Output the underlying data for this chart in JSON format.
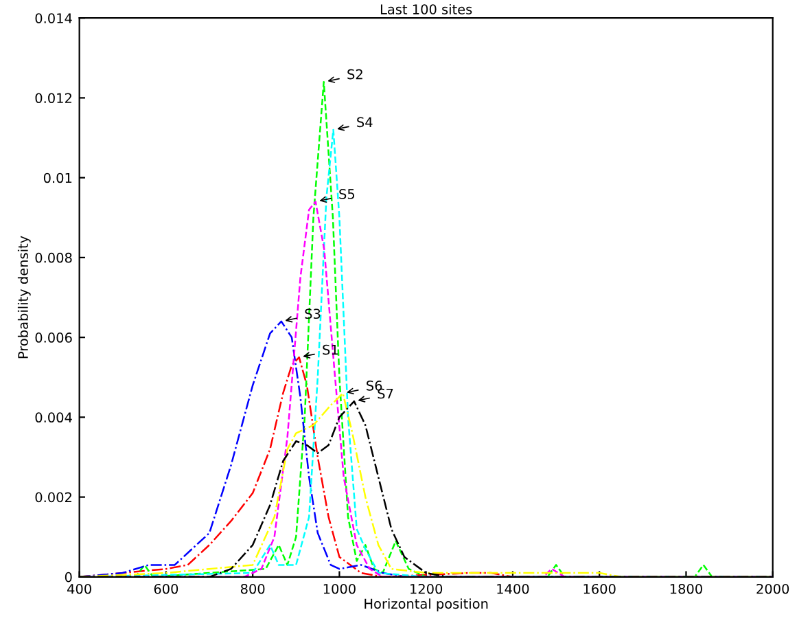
{
  "chart_data": {
    "type": "line",
    "title": "Last 100 sites",
    "xlabel": "Horizontal position",
    "ylabel": "Probability density",
    "xlim": [
      400,
      2000
    ],
    "ylim": [
      0,
      0.014
    ],
    "xticks": [
      400,
      600,
      800,
      1000,
      1200,
      1400,
      1600,
      1800,
      2000
    ],
    "yticks": [
      0,
      0.002,
      0.004,
      0.006,
      0.008,
      0.01,
      0.012,
      0.014
    ],
    "grid": false,
    "legend": false,
    "marker": "none",
    "series": [
      {
        "color": "#ff0000",
        "line_style": "dotted",
        "x": [
          400,
          500,
          600,
          650,
          700,
          750,
          800,
          840,
          870,
          890,
          907,
          925,
          950,
          975,
          1000,
          1050,
          1100,
          1300,
          1350,
          1400,
          2000
        ],
        "values": [
          0,
          0.0001,
          0.0002,
          0.0003,
          0.0008,
          0.0014,
          0.0021,
          0.0032,
          0.0046,
          0.0053,
          0.0055,
          0.0048,
          0.003,
          0.0015,
          0.0005,
          0.0001,
          0,
          0.0001,
          0.0001,
          0,
          0
        ]
      },
      {
        "color": "#00ff00",
        "line_style": "dashed",
        "x": [
          400,
          530,
          550,
          570,
          700,
          830,
          860,
          880,
          900,
          920,
          940,
          964,
          985,
          1000,
          1020,
          1040,
          1060,
          1080,
          1100,
          1130,
          1160,
          1200,
          1480,
          1500,
          1520,
          1820,
          1840,
          1860,
          2000
        ],
        "values": [
          0,
          0,
          0.0003,
          0,
          0.0001,
          0.0002,
          0.0008,
          0.0003,
          0.001,
          0.004,
          0.009,
          0.0124,
          0.009,
          0.005,
          0.0015,
          0.0004,
          0.0008,
          0.0002,
          0.0001,
          0.0009,
          0.0002,
          0,
          0,
          0.0003,
          0,
          0,
          0.0003,
          0,
          0
        ]
      },
      {
        "color": "#0000ff",
        "line_style": "dotted",
        "x": [
          400,
          500,
          560,
          620,
          700,
          750,
          800,
          840,
          866,
          890,
          910,
          930,
          950,
          980,
          1000,
          1050,
          1100,
          1150,
          2000
        ],
        "values": [
          0,
          0.0001,
          0.0003,
          0.0003,
          0.0011,
          0.0028,
          0.0048,
          0.0061,
          0.0064,
          0.006,
          0.0045,
          0.0025,
          0.0011,
          0.0003,
          0.0002,
          0.0003,
          0.0001,
          0,
          0
        ]
      },
      {
        "color": "#00ffff",
        "line_style": "dashed",
        "x": [
          400,
          800,
          840,
          860,
          900,
          930,
          950,
          970,
          986,
          1000,
          1020,
          1040,
          1060,
          1090,
          1200,
          2000
        ],
        "values": [
          0,
          0.0001,
          0.0008,
          0.0003,
          0.0003,
          0.0015,
          0.005,
          0.0095,
          0.0112,
          0.009,
          0.004,
          0.0012,
          0.0007,
          0.0001,
          0,
          0
        ]
      },
      {
        "color": "#ff00ff",
        "line_style": "dashed",
        "x": [
          400,
          780,
          820,
          850,
          880,
          910,
          930,
          945,
          965,
          990,
          1010,
          1040,
          1070,
          1100,
          1470,
          1490,
          1520,
          2000
        ],
        "values": [
          0,
          0,
          0.0002,
          0.001,
          0.0035,
          0.0075,
          0.0092,
          0.0094,
          0.0082,
          0.005,
          0.0025,
          0.0008,
          0.0002,
          0,
          0,
          0.0002,
          0,
          0
        ]
      },
      {
        "color": "#ffff00",
        "line_style": "dotted",
        "x": [
          400,
          600,
          700,
          800,
          850,
          880,
          900,
          940,
          980,
          1008,
          1030,
          1060,
          1090,
          1120,
          1200,
          1400,
          1600,
          1650,
          2000
        ],
        "values": [
          0,
          0.0001,
          0.0002,
          0.0003,
          0.0015,
          0.0032,
          0.0036,
          0.0038,
          0.0043,
          0.0046,
          0.0036,
          0.002,
          0.0008,
          0.0002,
          0.0001,
          0.0001,
          0.0001,
          0,
          0
        ]
      },
      {
        "color": "#000000",
        "line_style": "dotted",
        "x": [
          400,
          700,
          750,
          800,
          840,
          870,
          900,
          925,
          950,
          975,
          1000,
          1034,
          1060,
          1090,
          1120,
          1150,
          1200,
          1250,
          2000
        ],
        "values": [
          0,
          0,
          0.0002,
          0.0008,
          0.0018,
          0.0029,
          0.0034,
          0.0033,
          0.0031,
          0.0033,
          0.004,
          0.0044,
          0.0038,
          0.0025,
          0.0012,
          0.0005,
          0.0001,
          0,
          0
        ]
      }
    ],
    "annotations": [
      {
        "text": "S1",
        "x": 907,
        "y": 0.0055
      },
      {
        "text": "S2",
        "x": 964,
        "y": 0.0124
      },
      {
        "text": "S3",
        "x": 866,
        "y": 0.0064
      },
      {
        "text": "S4",
        "x": 986,
        "y": 0.0112
      },
      {
        "text": "S5",
        "x": 945,
        "y": 0.0094
      },
      {
        "text": "S6",
        "x": 1008,
        "y": 0.0046
      },
      {
        "text": "S7",
        "x": 1034,
        "y": 0.0044
      }
    ]
  }
}
